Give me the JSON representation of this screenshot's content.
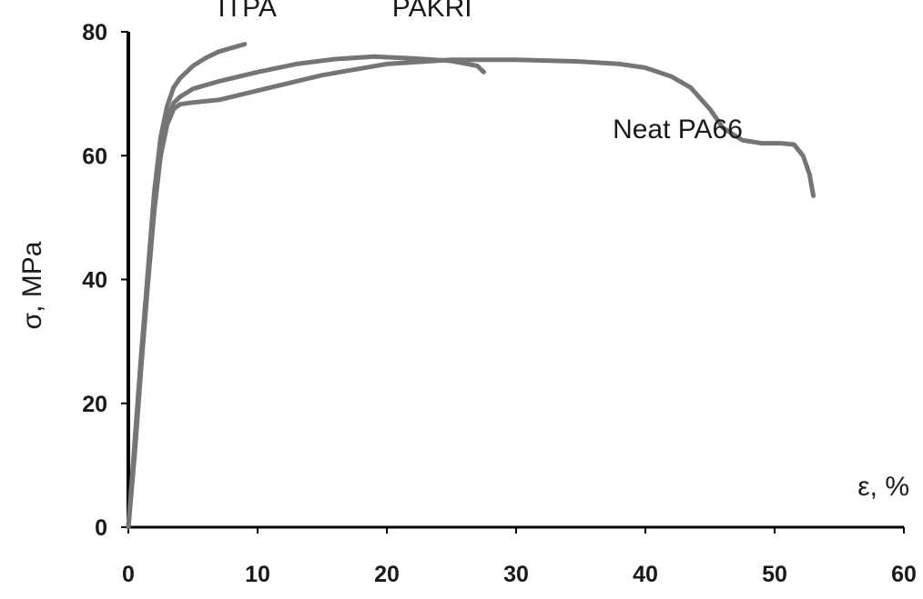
{
  "chart_data": {
    "type": "line",
    "title": "",
    "xlabel": "ε, %",
    "ylabel": "σ, MPa",
    "xlim": [
      0,
      60
    ],
    "ylim": [
      0,
      80
    ],
    "x_ticks": [
      0,
      10,
      20,
      30,
      40,
      50,
      60
    ],
    "y_ticks": [
      0,
      20,
      40,
      60,
      80
    ],
    "grid": false,
    "legend": "none",
    "colors": {
      "series": "#757575",
      "axis": "#000000",
      "text": "#1a1a1a"
    },
    "series": [
      {
        "name": "ITPA",
        "x": [
          0,
          0.5,
          1,
          1.5,
          2,
          2.5,
          3,
          3.5,
          4,
          5,
          6,
          7,
          8,
          9
        ],
        "y": [
          0,
          14,
          28,
          41,
          54,
          63,
          68,
          71,
          72.5,
          74.5,
          75.8,
          76.8,
          77.4,
          78
        ]
      },
      {
        "name": "PAKRI",
        "x": [
          0,
          0.5,
          1,
          1.5,
          2,
          2.5,
          3,
          3.5,
          4,
          5,
          7,
          10,
          13,
          16,
          19,
          22,
          25,
          27,
          27.5
        ],
        "y": [
          0,
          13,
          27,
          40,
          52,
          61,
          66,
          68.5,
          69.5,
          70.8,
          72,
          73.5,
          74.8,
          75.6,
          76,
          75.7,
          75.3,
          74.5,
          73.5
        ]
      },
      {
        "name": "Neat PA66",
        "x": [
          0,
          0.5,
          1,
          1.5,
          2,
          2.5,
          3,
          3.5,
          4,
          5,
          7,
          10,
          15,
          20,
          25,
          30,
          35,
          38,
          40,
          42,
          43.5,
          45,
          46,
          47.5,
          49,
          50.5,
          51.5,
          52.2,
          52.7,
          53
        ],
        "y": [
          0,
          12,
          26,
          39,
          51,
          60,
          65,
          67.5,
          68.3,
          68.6,
          69,
          70.5,
          73,
          74.8,
          75.5,
          75.5,
          75.2,
          74.8,
          74.2,
          72.8,
          71,
          67.5,
          64.5,
          62.5,
          62,
          62,
          61.8,
          60,
          57,
          53.5
        ]
      }
    ],
    "annotations": [
      {
        "text": "ITPA",
        "x": 9.2,
        "y": 82.5
      },
      {
        "text": "PAKRI",
        "x": 23.5,
        "y": 82.5
      },
      {
        "text": "Neat PA66",
        "x": 42.5,
        "y": 62.8
      }
    ]
  }
}
